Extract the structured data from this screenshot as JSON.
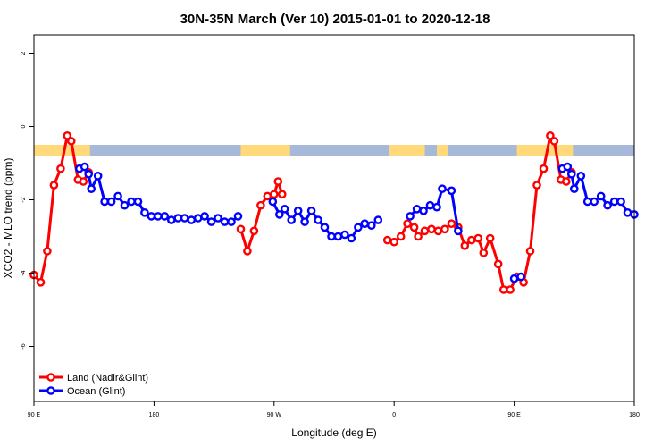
{
  "chart_data": {
    "type": "line",
    "title": "30N-35N March (Ver 10)   2015-01-01 to 2020-12-18",
    "xlabel": "Longitude (deg E)",
    "ylabel": "XCO2 - MLO trend (ppm)",
    "xlim": [
      90,
      540
    ],
    "ylim": [
      -7.5,
      2.5
    ],
    "x_ticks": [
      {
        "value": 90,
        "label": "90 E"
      },
      {
        "value": 180,
        "label": "180"
      },
      {
        "value": 270,
        "label": "90 W"
      },
      {
        "value": 360,
        "label": "0"
      },
      {
        "value": 450,
        "label": "90 E"
      },
      {
        "value": 540,
        "label": "180"
      }
    ],
    "y_ticks": [
      {
        "value": 2,
        "label": "2"
      },
      {
        "value": 0,
        "label": "0"
      },
      {
        "value": -2,
        "label": "-2"
      },
      {
        "value": -4,
        "label": "-4"
      },
      {
        "value": -6,
        "label": "-6"
      }
    ],
    "grid": false,
    "legend_position": "bottom-left",
    "series": [
      {
        "name": "Land (Nadir&Glint)",
        "color": "#ff0000",
        "segments": [
          [
            [
              90,
              -4.05
            ],
            [
              95,
              -4.25
            ],
            [
              100,
              -3.4
            ],
            [
              105,
              -1.6
            ],
            [
              110,
              -1.15
            ],
            [
              115,
              -0.25
            ],
            [
              118,
              -0.4
            ],
            [
              123,
              -1.45
            ],
            [
              127,
              -1.5
            ],
            [
              131,
              -1.25
            ]
          ],
          [
            [
              245,
              -2.8
            ],
            [
              250,
              -3.4
            ],
            [
              255,
              -2.85
            ],
            [
              260,
              -2.15
            ],
            [
              265,
              -1.9
            ],
            [
              270,
              -1.85
            ],
            [
              273,
              -1.5
            ],
            [
              276,
              -1.85
            ]
          ],
          [
            [
              355,
              -3.1
            ],
            [
              360,
              -3.15
            ],
            [
              365,
              -3.0
            ],
            [
              370,
              -2.65
            ],
            [
              375,
              -2.75
            ],
            [
              378,
              -3.0
            ],
            [
              383,
              -2.85
            ],
            [
              388,
              -2.8
            ],
            [
              393,
              -2.85
            ],
            [
              398,
              -2.8
            ],
            [
              403,
              -2.65
            ],
            [
              408,
              -2.75
            ],
            [
              413,
              -3.25
            ],
            [
              418,
              -3.1
            ],
            [
              423,
              -3.05
            ],
            [
              427,
              -3.45
            ],
            [
              432,
              -3.05
            ],
            [
              438,
              -3.75
            ],
            [
              442,
              -4.45
            ],
            [
              447,
              -4.45
            ],
            [
              452,
              -4.1
            ],
            [
              457,
              -4.25
            ],
            [
              462,
              -3.4
            ],
            [
              467,
              -1.6
            ],
            [
              472,
              -1.15
            ],
            [
              477,
              -0.25
            ],
            [
              480,
              -0.4
            ],
            [
              485,
              -1.45
            ],
            [
              489,
              -1.5
            ],
            [
              493,
              -1.25
            ]
          ]
        ]
      },
      {
        "name": "Ocean (Glint)",
        "color": "#0000ff",
        "segments": [
          [
            [
              124,
              -1.15
            ],
            [
              128,
              -1.1
            ],
            [
              131,
              -1.3
            ],
            [
              133,
              -1.7
            ],
            [
              138,
              -1.35
            ],
            [
              143,
              -2.05
            ],
            [
              148,
              -2.05
            ],
            [
              153,
              -1.9
            ],
            [
              158,
              -2.15
            ],
            [
              163,
              -2.05
            ],
            [
              168,
              -2.05
            ],
            [
              173,
              -2.35
            ],
            [
              178,
              -2.45
            ],
            [
              183,
              -2.45
            ],
            [
              188,
              -2.45
            ],
            [
              193,
              -2.55
            ],
            [
              198,
              -2.5
            ],
            [
              203,
              -2.5
            ],
            [
              208,
              -2.55
            ],
            [
              213,
              -2.5
            ],
            [
              218,
              -2.45
            ],
            [
              223,
              -2.6
            ],
            [
              228,
              -2.5
            ],
            [
              233,
              -2.6
            ],
            [
              238,
              -2.6
            ],
            [
              243,
              -2.45
            ]
          ],
          [
            [
              269,
              -2.05
            ],
            [
              274,
              -2.4
            ],
            [
              278,
              -2.25
            ],
            [
              283,
              -2.55
            ],
            [
              288,
              -2.3
            ],
            [
              293,
              -2.6
            ],
            [
              298,
              -2.3
            ],
            [
              303,
              -2.55
            ],
            [
              308,
              -2.75
            ],
            [
              313,
              -3.0
            ],
            [
              318,
              -3.0
            ],
            [
              323,
              -2.95
            ],
            [
              328,
              -3.05
            ],
            [
              333,
              -2.75
            ],
            [
              338,
              -2.65
            ],
            [
              343,
              -2.7
            ],
            [
              348,
              -2.55
            ]
          ],
          [
            [
              372,
              -2.45
            ],
            [
              377,
              -2.25
            ],
            [
              382,
              -2.3
            ],
            [
              387,
              -2.15
            ],
            [
              392,
              -2.2
            ],
            [
              396,
              -1.7
            ],
            [
              403,
              -1.75
            ],
            [
              408,
              -2.85
            ]
          ],
          [
            [
              450,
              -4.15
            ],
            [
              455,
              -4.1
            ]
          ],
          [
            [
              486,
              -1.15
            ],
            [
              490,
              -1.1
            ],
            [
              493,
              -1.3
            ],
            [
              495,
              -1.7
            ],
            [
              500,
              -1.35
            ],
            [
              505,
              -2.05
            ],
            [
              510,
              -2.05
            ],
            [
              515,
              -1.9
            ],
            [
              520,
              -2.15
            ],
            [
              525,
              -2.05
            ],
            [
              530,
              -2.05
            ],
            [
              535,
              -2.35
            ],
            [
              540,
              -2.4
            ]
          ]
        ]
      }
    ],
    "land_mask": {
      "y_range": [
        -0.8,
        -0.5
      ],
      "land_color": "#ffd97a",
      "ocean_color": "#a8b8d8",
      "land_x_intervals": [
        [
          90,
          132
        ],
        [
          245,
          282
        ],
        [
          356,
          383
        ],
        [
          392,
          400
        ],
        [
          452,
          494
        ]
      ]
    }
  }
}
